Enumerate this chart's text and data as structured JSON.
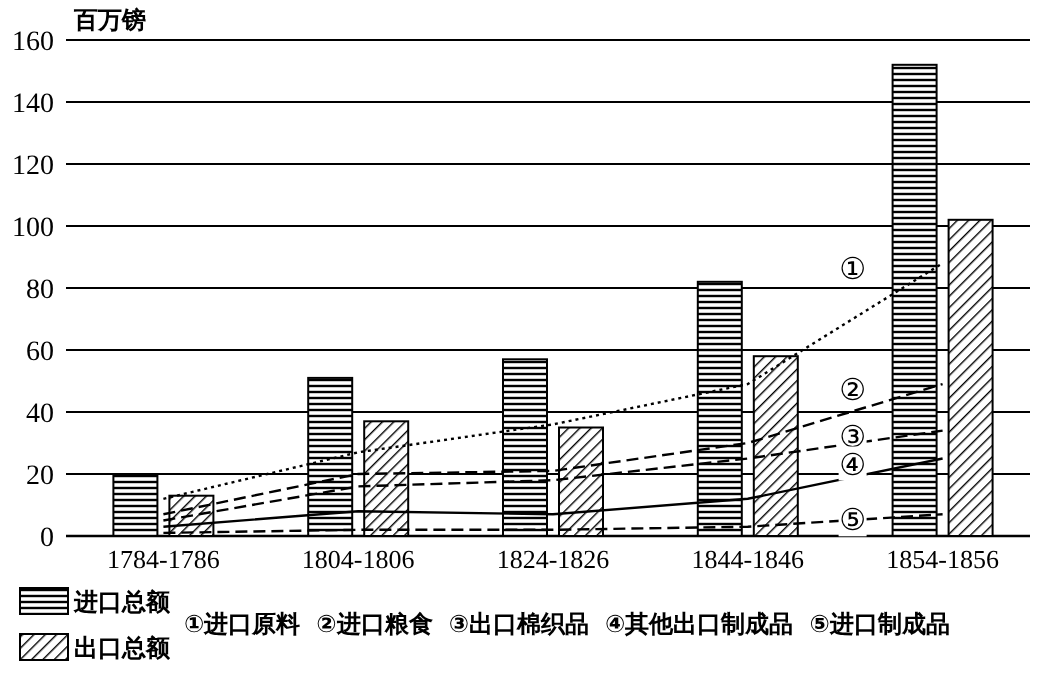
{
  "chart_data": {
    "type": "bar",
    "ylabel": "百万镑",
    "categories": [
      "1784-1786",
      "1804-1806",
      "1824-1826",
      "1844-1846",
      "1854-1856"
    ],
    "series": [
      {
        "name": "进口总额",
        "color": "#000000",
        "values": [
          20,
          51,
          57,
          82,
          152
        ]
      },
      {
        "name": "出口总额",
        "color": "#000000",
        "values": [
          13,
          37,
          35,
          58,
          102
        ]
      },
      {
        "type": "line",
        "line_style": "dotted",
        "color": "#000000",
        "values": [
          12,
          27,
          36,
          49,
          88
        ]
      },
      {
        "type": "line",
        "line_style": "dashed",
        "color": "#000000",
        "values": [
          7,
          20,
          21,
          30,
          49
        ]
      },
      {
        "type": "line",
        "line_style": "dashed",
        "color": "#000000",
        "values": [
          5,
          16,
          18,
          25,
          34
        ]
      },
      {
        "type": "line",
        "line_style": "solid",
        "color": "#000000",
        "values": [
          3,
          8,
          7,
          12,
          25
        ]
      },
      {
        "type": "line",
        "line_style": "dashed",
        "color": "#000000",
        "values": [
          1,
          2,
          2,
          3,
          7
        ]
      }
    ],
    "annotations": [
      "①进口原料",
      "②进口粮食",
      "③出口棉织品",
      "④其他出口制成品",
      "⑤进口制成品",
      {
        "text": "①",
        "x": "1854-1856",
        "y": 88
      },
      {
        "text": "②",
        "x": "1854-1856",
        "y": 49
      },
      {
        "text": "③",
        "x": "1854-1856",
        "y": 34
      },
      {
        "text": "④",
        "x": "1854-1856",
        "y": 25
      },
      {
        "text": "⑤",
        "x": "1854-1856",
        "y": 7
      }
    ],
    "ylim": [
      0,
      160
    ],
    "yticks": [
      0,
      20,
      40,
      60,
      80,
      100,
      120,
      140,
      160
    ],
    "grid": "y",
    "legend": "bottom",
    "marker": "none"
  }
}
